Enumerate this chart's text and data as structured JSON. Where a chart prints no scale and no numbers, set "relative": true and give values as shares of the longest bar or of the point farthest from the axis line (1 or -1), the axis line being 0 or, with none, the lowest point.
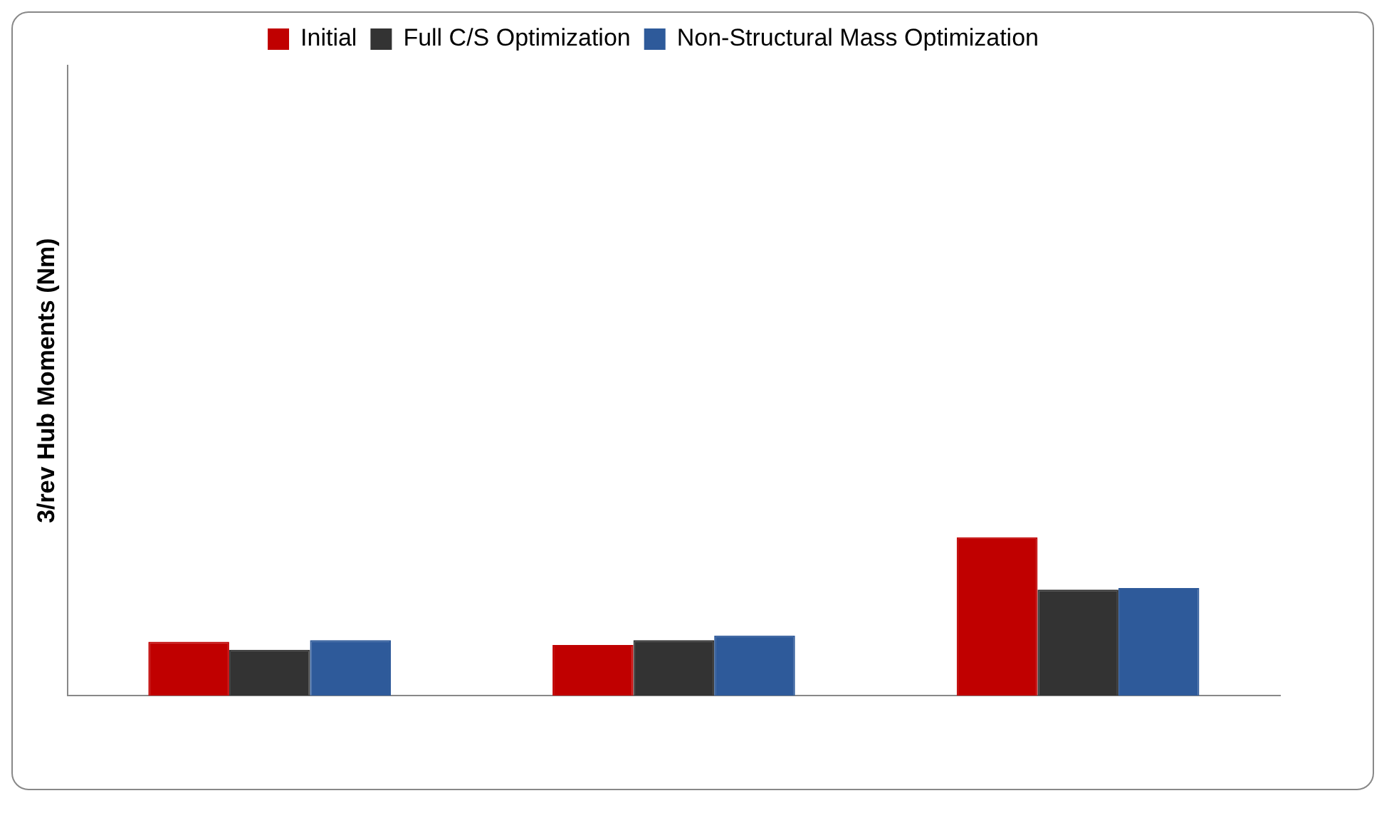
{
  "chart_data": {
    "type": "bar",
    "ylabel": "3/rev Hub Moments (Nm)",
    "relative": true,
    "categories": [
      null,
      null,
      null
    ],
    "series": [
      {
        "name": "Initial",
        "color": "#c00000",
        "values": [
          0.34,
          0.32,
          1
        ]
      },
      {
        "name": "Full C/S Optimization",
        "color": "#333333",
        "values": [
          0.29,
          0.35,
          0.67
        ]
      },
      {
        "name": "Non-Structural Mass Optimization",
        "color": "#2e5a9a",
        "values": [
          0.35,
          0.38,
          0.68
        ]
      }
    ],
    "legend": "top"
  }
}
